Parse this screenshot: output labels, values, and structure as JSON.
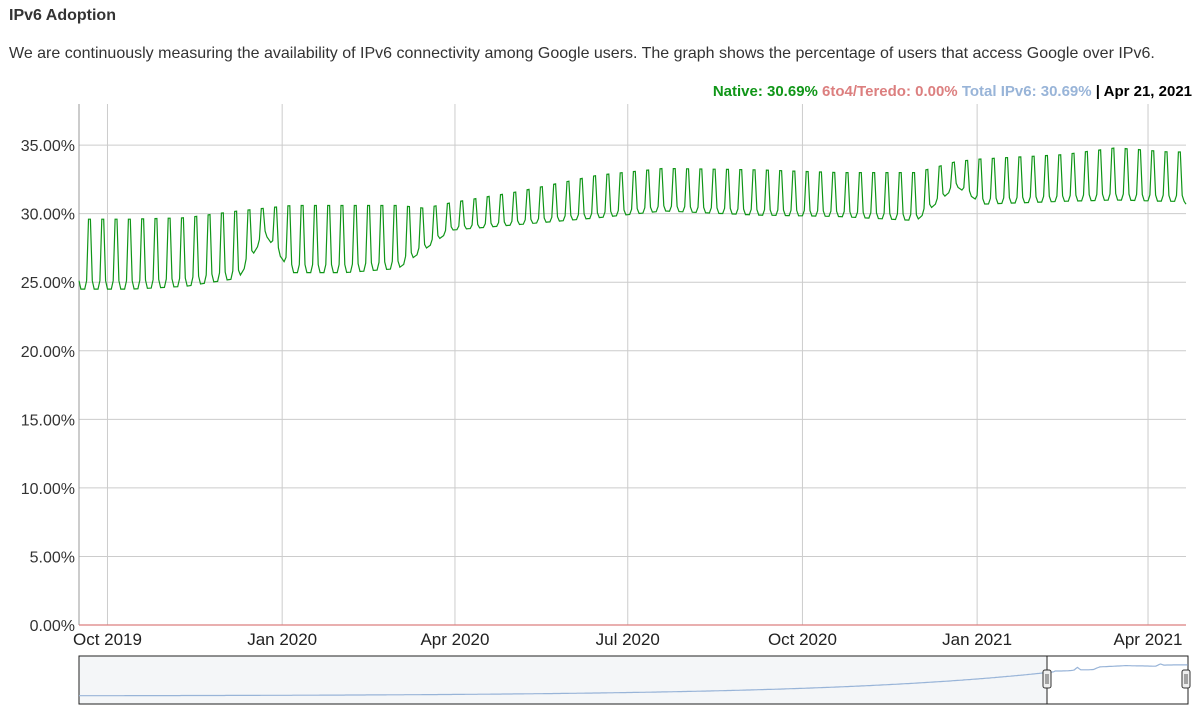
{
  "header": {
    "title": "IPv6 Adoption",
    "description": "We are continuously measuring the availability of IPv6 connectivity among Google users. The graph shows the percentage of users that access Google over IPv6."
  },
  "legend": {
    "native": "Native: 30.69%",
    "teredo": "6to4/Teredo: 0.00%",
    "total": "Total IPv6: 30.69%",
    "separator": "|",
    "date": "Apr 21, 2021"
  },
  "colors": {
    "native": "#109618",
    "teredo": "#dc7f7f",
    "total": "#98b4d8",
    "grid": "#cccccc"
  },
  "chart_data": {
    "type": "line",
    "x_range": [
      "2019-09-16",
      "2021-04-21"
    ],
    "ylim": [
      0,
      38
    ],
    "y_ticks": [
      "0.00%",
      "5.00%",
      "10.00%",
      "15.00%",
      "20.00%",
      "25.00%",
      "30.00%",
      "35.00%"
    ],
    "x_ticks": [
      {
        "label": "Oct 2019",
        "date": "2019-10-01"
      },
      {
        "label": "Jan 2020",
        "date": "2020-01-01"
      },
      {
        "label": "Apr 2020",
        "date": "2020-04-01"
      },
      {
        "label": "Jul 2020",
        "date": "2020-07-01"
      },
      {
        "label": "Oct 2020",
        "date": "2020-10-01"
      },
      {
        "label": "Jan 2021",
        "date": "2021-01-01"
      },
      {
        "label": "Apr 2021",
        "date": "2021-04-01"
      }
    ],
    "grid": true,
    "series": [
      {
        "name": "Native",
        "pattern": "weekly",
        "weekly_values": [
          {
            "week_of": "2019-09-16",
            "weekday": 24.5,
            "weekend": 29.6
          },
          {
            "week_of": "2019-10-14",
            "weekday": 24.5,
            "weekend": 29.6
          },
          {
            "week_of": "2019-11-11",
            "weekday": 24.7,
            "weekend": 29.7
          },
          {
            "week_of": "2019-12-09",
            "weekday": 25.3,
            "weekend": 30.2
          },
          {
            "week_of": "2019-12-23",
            "weekday": 28.5,
            "weekend": 30.4
          },
          {
            "week_of": "2020-01-06",
            "weekday": 25.7,
            "weekend": 30.6
          },
          {
            "week_of": "2020-02-03",
            "weekday": 25.7,
            "weekend": 30.6
          },
          {
            "week_of": "2020-03-02",
            "weekday": 26.0,
            "weekend": 30.6
          },
          {
            "week_of": "2020-03-16",
            "weekday": 27.4,
            "weekend": 30.4
          },
          {
            "week_of": "2020-03-30",
            "weekday": 28.8,
            "weekend": 30.8
          },
          {
            "week_of": "2020-05-04",
            "weekday": 29.2,
            "weekend": 31.6
          },
          {
            "week_of": "2020-06-15",
            "weekday": 29.7,
            "weekend": 32.8
          },
          {
            "week_of": "2020-07-20",
            "weekday": 30.2,
            "weekend": 33.3
          },
          {
            "week_of": "2020-09-07",
            "weekday": 29.9,
            "weekend": 33.2
          },
          {
            "week_of": "2020-10-19",
            "weekday": 29.8,
            "weekend": 33.0
          },
          {
            "week_of": "2020-11-30",
            "weekday": 29.5,
            "weekend": 33.0
          },
          {
            "week_of": "2020-12-21",
            "weekday": 32.0,
            "weekend": 33.8
          },
          {
            "week_of": "2021-01-04",
            "weekday": 30.7,
            "weekend": 34.0
          },
          {
            "week_of": "2021-02-15",
            "weekday": 30.9,
            "weekend": 34.3
          },
          {
            "week_of": "2021-03-15",
            "weekday": 31.0,
            "weekend": 34.8
          },
          {
            "week_of": "2021-04-12",
            "weekday": 30.9,
            "weekend": 34.5
          }
        ],
        "last": {
          "date": "2021-04-21",
          "value": 30.69
        }
      },
      {
        "name": "6to4/Teredo",
        "constant": 0.0
      }
    ]
  },
  "navigator": {
    "window_start": "2019-09-16",
    "window_end": "2021-04-21"
  }
}
